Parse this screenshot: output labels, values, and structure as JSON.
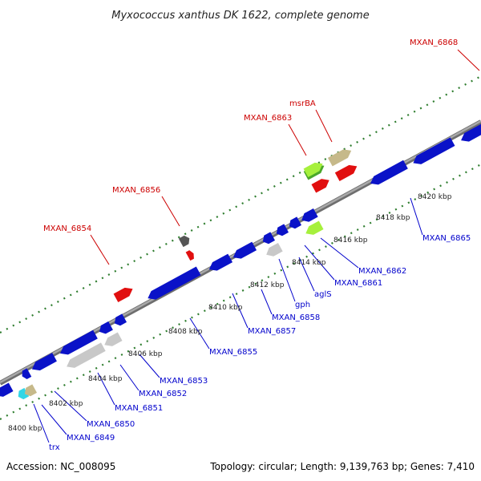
{
  "title": "Myxococcus xanthus DK 1622, complete genome",
  "footer": {
    "accession": "Accession: NC_008095",
    "stats": "Topology: circular; Length: 9,139,763 bp; Genes: 7,410"
  },
  "colors": {
    "forward_label": "#cc0000",
    "reverse_label": "#0000cc",
    "backbone": "#8a8a8a",
    "dots": "#2e7d2e",
    "cds": "#0a12c8",
    "cds_red": "#e10f0f",
    "tan": "#c6b98a",
    "lightgray": "#c8c8c8",
    "lime": "#a6f03c",
    "green": "#4aa82a",
    "darkgray": "#555555",
    "cyan": "#33d6e6"
  },
  "ticks": [
    "8400 kbp",
    "8402 kbp",
    "8404 kbp",
    "8406 kbp",
    "8408 kbp",
    "8410 kbp",
    "8412 kbp",
    "8414 kbp",
    "8416 kbp",
    "8418 kbp",
    "8420 kbp"
  ],
  "forward_labels": [
    "MXAN_6854",
    "MXAN_6856",
    "MXAN_6863",
    "msrBA",
    "MXAN_6868"
  ],
  "reverse_labels": [
    "trx",
    "MXAN_6849",
    "MXAN_6850",
    "MXAN_6851",
    "MXAN_6852",
    "MXAN_6853",
    "MXAN_6855",
    "MXAN_6857",
    "MXAN_6858",
    "gph",
    "aglS",
    "MXAN_6861",
    "MXAN_6862",
    "MXAN_6865"
  ]
}
